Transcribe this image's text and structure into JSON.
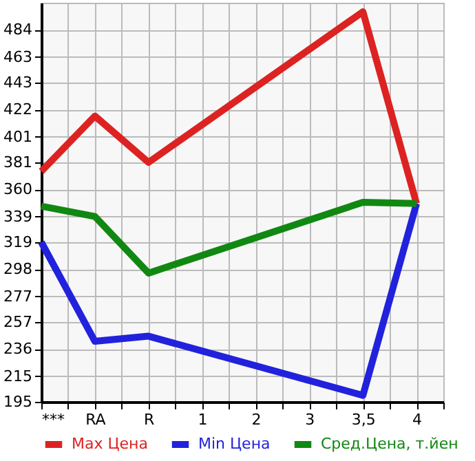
{
  "chart_data": {
    "type": "line",
    "categories": [
      "***",
      "RA",
      "R",
      "1",
      "2",
      "3",
      "3,5",
      "4"
    ],
    "series": [
      {
        "name": "Max Цена",
        "color": "#dd2222",
        "values": [
          374,
          417,
          381,
          null,
          null,
          null,
          498,
          349
        ]
      },
      {
        "name": "Min Цена",
        "color": "#2222dd",
        "values": [
          319,
          242,
          246,
          null,
          null,
          null,
          200,
          349
        ]
      },
      {
        "name": "Сред.Цена, т.йен",
        "color": "#118811",
        "values": [
          347,
          339,
          295,
          null,
          null,
          null,
          350,
          349
        ]
      }
    ],
    "ylim": [
      195,
      505
    ],
    "yticks": [
      195,
      215,
      236,
      257,
      277,
      298,
      319,
      339,
      360,
      381,
      401,
      422,
      443,
      463,
      484
    ],
    "grid": true,
    "legend": "bottom",
    "marker": "none",
    "line_style": "solid"
  }
}
